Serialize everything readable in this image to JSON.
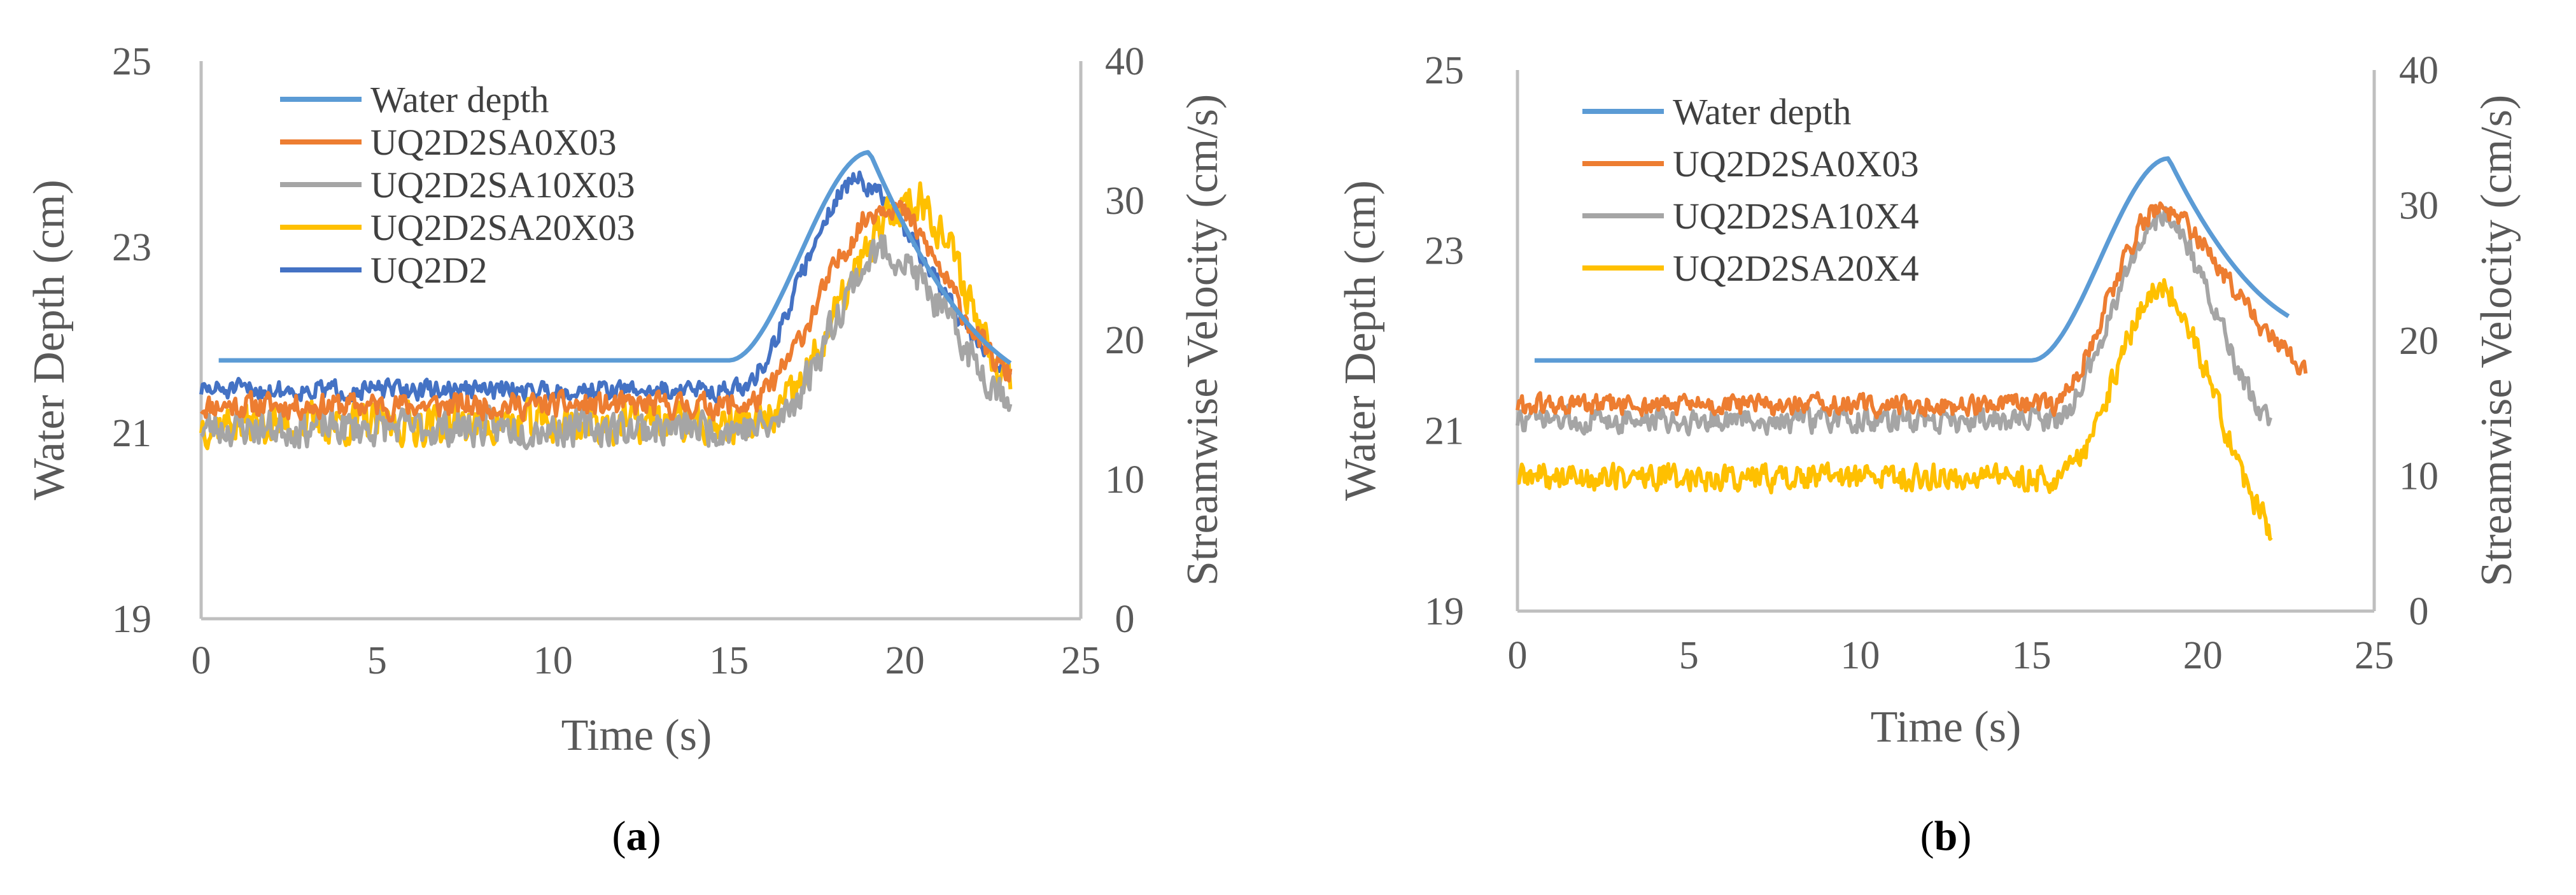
{
  "chart_data": [
    {
      "type": "line",
      "panel": "a",
      "caption": {
        "open": "(",
        "letter": "a",
        "close": ")"
      },
      "xlabel": "Time (s)",
      "ylabel": "Water Depth (cm)",
      "y2label": "Streamwise Velocity (cm/s)",
      "xlim": [
        0,
        25
      ],
      "ylim": [
        19,
        25
      ],
      "y2lim": [
        0,
        40
      ],
      "xticks": [
        "0",
        "5",
        "10",
        "15",
        "20",
        "25"
      ],
      "yticks": [
        "19",
        "21",
        "23",
        "25"
      ],
      "y2ticks": [
        "0",
        "10",
        "20",
        "30",
        "40"
      ],
      "legend_position": "top-left",
      "series": [
        {
          "name": "Water depth",
          "axis": "left",
          "color": "#5B9BD5",
          "shape": {
            "kind": "depth",
            "start": 0.5,
            "end": 23.0,
            "base": 21.78,
            "peak": 24.02,
            "peakT": 19.0,
            "riseStart": 15.0,
            "endValue": 21.75,
            "noise": 0
          }
        },
        {
          "name": "UQ2D2SA0X03",
          "axis": "right",
          "color": "#ED7D31",
          "shape": {
            "kind": "velocity",
            "start": 0.0,
            "end": 23.0,
            "base": 15.3,
            "peak": 29.8,
            "peakT": 19.6,
            "riseStart": 15.4,
            "endValue": 17.5,
            "noise": 0.9,
            "seed": 11
          }
        },
        {
          "name": "UQ2D2SA10X03",
          "axis": "right",
          "color": "#A5A5A5",
          "shape": {
            "kind": "velocity",
            "start": 0.0,
            "end": 23.0,
            "base": 13.7,
            "peak": 26.5,
            "peakT": 19.5,
            "riseStart": 16.0,
            "endValue": 16.0,
            "noise": 1.3,
            "seed": 23
          }
        },
        {
          "name": "UQ2D2SA20X03",
          "axis": "right",
          "color": "#FFC000",
          "shape": {
            "kind": "velocity",
            "start": 0.0,
            "end": 23.0,
            "base": 14.0,
            "peak": 30.2,
            "peakT": 20.4,
            "riseStart": 15.8,
            "endValue": 17.5,
            "noise": 1.5,
            "seed": 37
          }
        },
        {
          "name": "UQ2D2",
          "axis": "right",
          "color": "#4472C4",
          "shape": {
            "kind": "velocity",
            "start": 0.0,
            "end": 23.0,
            "base": 16.4,
            "peak": 31.5,
            "peakT": 18.7,
            "riseStart": 15.2,
            "endValue": 17.5,
            "noise": 0.7,
            "seed": 51
          }
        }
      ]
    },
    {
      "type": "line",
      "panel": "b",
      "caption": {
        "open": "(",
        "letter": "b",
        "close": ")"
      },
      "xlabel": "Time (s)",
      "ylabel": "Water Depth (cm)",
      "y2label": "Streamwise Velocity (cm/s)",
      "xlim": [
        0,
        25
      ],
      "ylim": [
        19,
        25
      ],
      "y2lim": [
        0,
        40
      ],
      "xticks": [
        "0",
        "5",
        "10",
        "15",
        "20",
        "25"
      ],
      "yticks": [
        "19",
        "21",
        "23",
        "25"
      ],
      "y2ticks": [
        "0",
        "10",
        "20",
        "30",
        "40"
      ],
      "legend_position": "top-left",
      "series": [
        {
          "name": "Water depth",
          "axis": "left",
          "color": "#5B9BD5",
          "shape": {
            "kind": "depth",
            "start": 0.5,
            "end": 22.5,
            "base": 21.78,
            "peak": 24.02,
            "peakT": 19.0,
            "riseStart": 15.0,
            "endValue": 22.27,
            "noise": 0
          }
        },
        {
          "name": "UQ2D2SA0X03",
          "axis": "right",
          "color": "#ED7D31",
          "shape": {
            "kind": "velocity",
            "start": 0.0,
            "end": 23.0,
            "base": 15.2,
            "peak": 29.8,
            "peakT": 18.8,
            "riseStart": 15.5,
            "endValue": 18.0,
            "noise": 0.8,
            "seed": 61
          }
        },
        {
          "name": "UQ2D2SA10X4",
          "axis": "right",
          "color": "#A5A5A5",
          "shape": {
            "kind": "velocity",
            "start": 0.0,
            "end": 22.0,
            "base": 14.1,
            "peak": 29.2,
            "peakT": 18.9,
            "riseStart": 15.6,
            "endValue": 13.8,
            "noise": 0.9,
            "seed": 73
          }
        },
        {
          "name": "UQ2D2SA20X4",
          "axis": "right",
          "color": "#FFC000",
          "shape": {
            "kind": "velocity",
            "start": 0.0,
            "end": 22.0,
            "base": 9.9,
            "peak": 24.0,
            "peakT": 18.9,
            "riseStart": 15.8,
            "endValue": 6.0,
            "noise": 1.0,
            "seed": 89
          }
        }
      ]
    }
  ]
}
